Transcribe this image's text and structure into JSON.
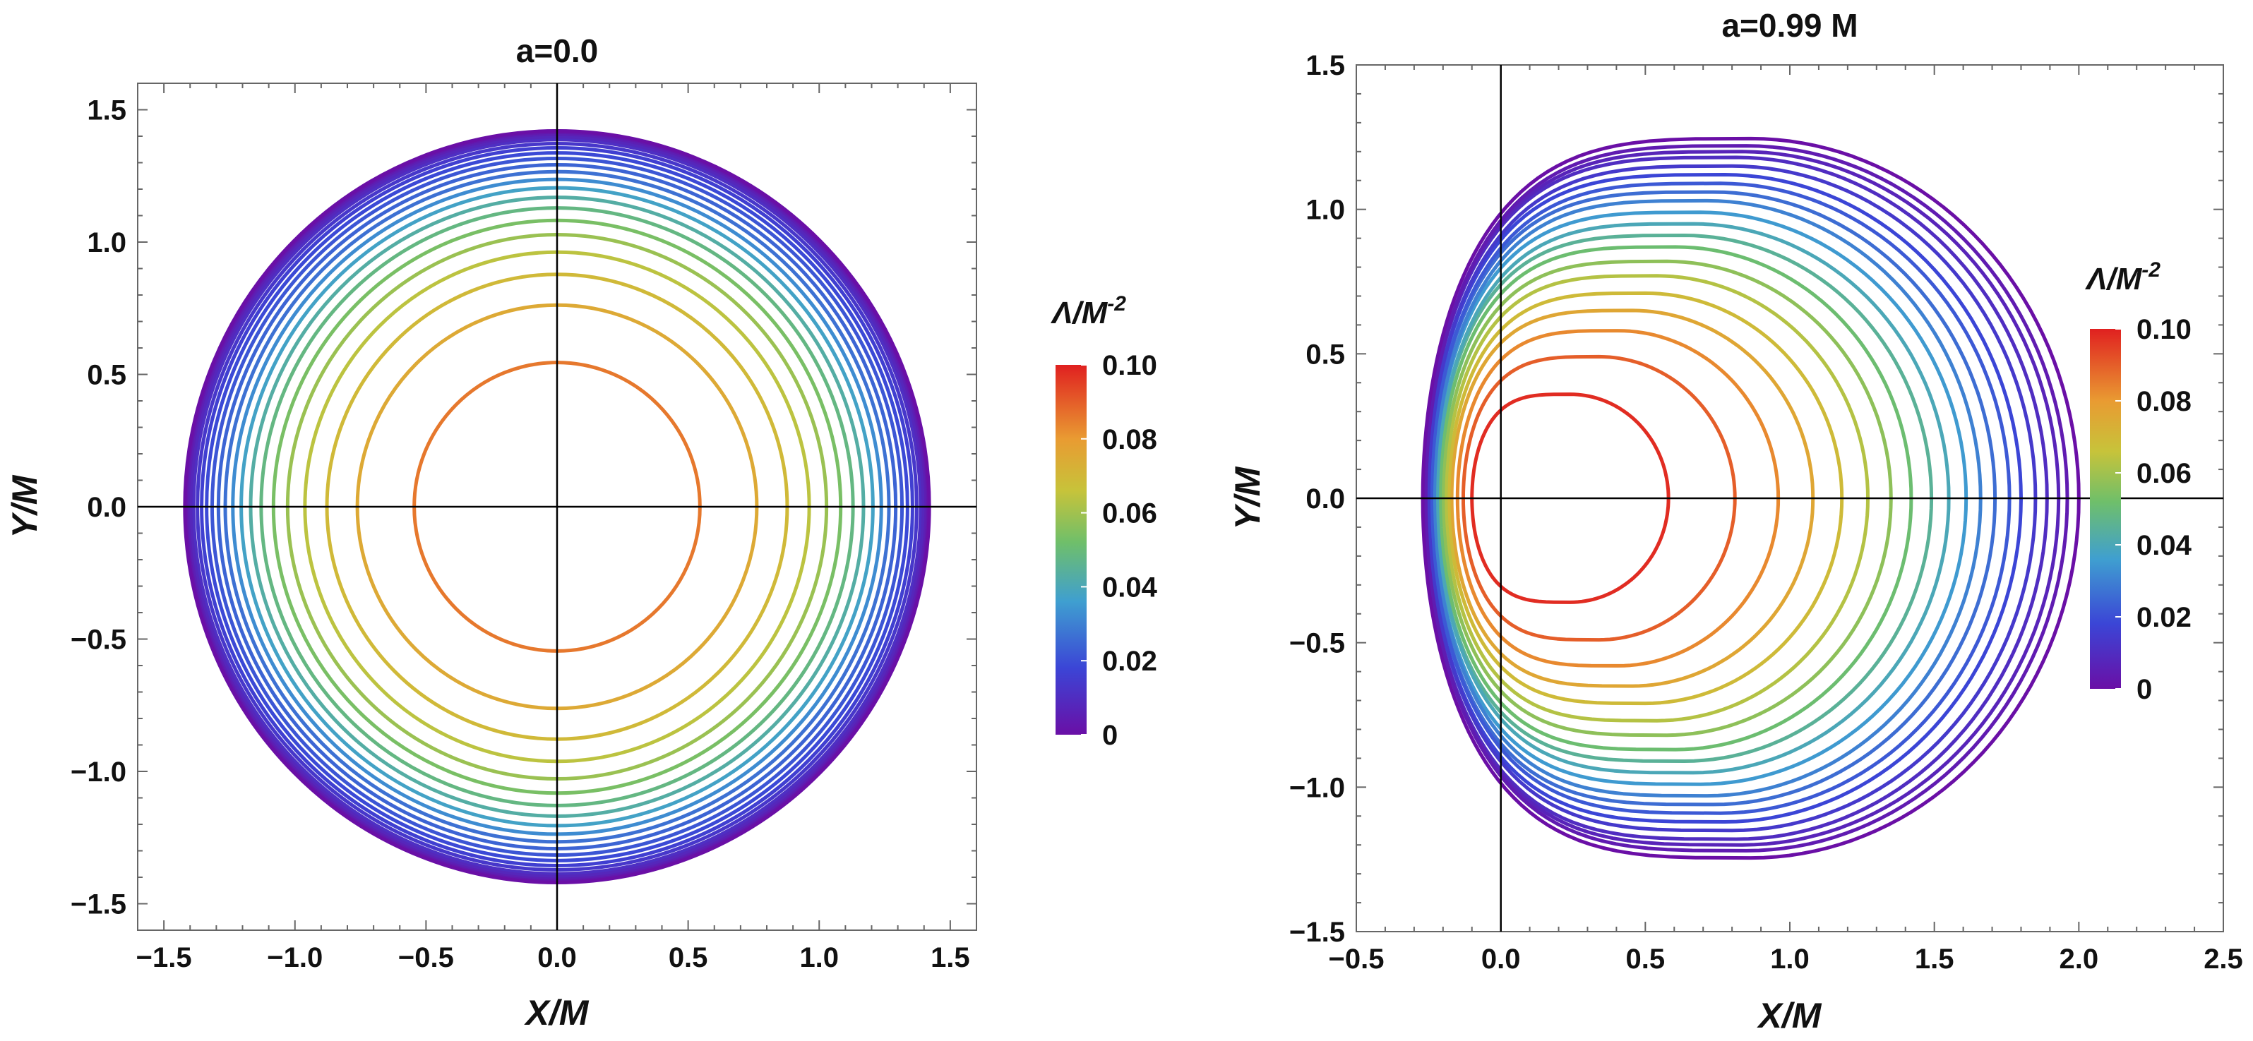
{
  "chart_data": [
    {
      "type": "contour",
      "title": "a=0.0",
      "xlabel": "X/M",
      "ylabel": "Y/M",
      "xlim": [
        -1.6,
        1.6
      ],
      "ylim": [
        -1.6,
        1.6
      ],
      "xticks": [
        -1.5,
        -1.0,
        -0.5,
        0.0,
        0.5,
        1.0,
        1.5
      ],
      "yticks": [
        -1.5,
        -1.0,
        -0.5,
        0.0,
        0.5,
        1.0,
        1.5
      ],
      "xtick_labels": [
        "-1.5",
        "-1.0",
        "-0.5",
        "0.0",
        "0.5",
        "1.0",
        "1.5"
      ],
      "ytick_labels": [
        "-1.5",
        "-1.0",
        "-0.5",
        "0.0",
        "0.5",
        "1.0",
        "1.5"
      ],
      "colorbar": {
        "label": "Λ/M",
        "label_sup": "-2",
        "min": 0,
        "max": 0.1,
        "ticks": [
          "0",
          "0.02",
          "0.04",
          "0.06",
          "0.08",
          "0.10"
        ]
      },
      "curves": [
        {
          "lambda": 0.0857,
          "radius": 0.545
        },
        {
          "lambda": 0.075,
          "radius": 0.762
        },
        {
          "lambda": 0.0696,
          "radius": 0.878
        },
        {
          "lambda": 0.0643,
          "radius": 0.962
        },
        {
          "lambda": 0.0589,
          "radius": 1.028
        },
        {
          "lambda": 0.0536,
          "radius": 1.082
        },
        {
          "lambda": 0.0482,
          "radius": 1.129
        },
        {
          "lambda": 0.0429,
          "radius": 1.169
        },
        {
          "lambda": 0.0375,
          "radius": 1.205
        },
        {
          "lambda": 0.0321,
          "radius": 1.237
        },
        {
          "lambda": 0.0268,
          "radius": 1.266
        },
        {
          "lambda": 0.0241,
          "radius": 1.292
        },
        {
          "lambda": 0.0214,
          "radius": 1.316
        },
        {
          "lambda": 0.0188,
          "radius": 1.337
        },
        {
          "lambda": 0.0161,
          "radius": 1.356
        },
        {
          "lambda": 0.0134,
          "radius": 1.372
        },
        {
          "lambda": 0.0107,
          "radius": 1.387
        },
        {
          "lambda": 0.008,
          "radius": 1.398
        },
        {
          "lambda": 0.0054,
          "radius": 1.408
        },
        {
          "lambda": 0.0027,
          "radius": 1.415
        },
        {
          "lambda": 0.0,
          "radius": 1.42
        }
      ]
    },
    {
      "type": "contour",
      "title": "a=0.99 M",
      "xlabel": "X/M",
      "ylabel": "Y/M",
      "xlim": [
        -0.5,
        2.5
      ],
      "ylim": [
        -1.5,
        1.5
      ],
      "xticks": [
        -0.5,
        0.0,
        0.5,
        1.0,
        1.5,
        2.0,
        2.5
      ],
      "yticks": [
        -1.5,
        -1.0,
        -0.5,
        0.0,
        0.5,
        1.0,
        1.5
      ],
      "xtick_labels": [
        "-0.5",
        "0.0",
        "0.5",
        "1.0",
        "1.5",
        "2.0",
        "2.5"
      ],
      "ytick_labels": [
        "-1.5",
        "-1.0",
        "-0.5",
        "0.0",
        "0.5",
        "1.0",
        "1.5"
      ],
      "colorbar": {
        "label": "Λ/M",
        "label_sup": "-2",
        "min": 0,
        "max": 0.1,
        "ticks": [
          "0",
          "0.02",
          "0.04",
          "0.06",
          "0.08",
          "0.10"
        ]
      },
      "curves": [
        {
          "lambda": 0.098,
          "x_left": -0.1,
          "x_right": 0.58,
          "half_height": 0.36
        },
        {
          "lambda": 0.09,
          "x_left": -0.13,
          "x_right": 0.81,
          "half_height": 0.49
        },
        {
          "lambda": 0.083,
          "x_left": -0.15,
          "x_right": 0.96,
          "half_height": 0.58
        },
        {
          "lambda": 0.076,
          "x_left": -0.17,
          "x_right": 1.08,
          "half_height": 0.65
        },
        {
          "lambda": 0.069,
          "x_left": -0.18,
          "x_right": 1.18,
          "half_height": 0.71
        },
        {
          "lambda": 0.063,
          "x_left": -0.19,
          "x_right": 1.27,
          "half_height": 0.77
        },
        {
          "lambda": 0.057,
          "x_left": -0.2,
          "x_right": 1.35,
          "half_height": 0.82
        },
        {
          "lambda": 0.051,
          "x_left": -0.21,
          "x_right": 1.42,
          "half_height": 0.87
        },
        {
          "lambda": 0.045,
          "x_left": -0.22,
          "x_right": 1.49,
          "half_height": 0.91
        },
        {
          "lambda": 0.04,
          "x_left": -0.22,
          "x_right": 1.55,
          "half_height": 0.95
        },
        {
          "lambda": 0.035,
          "x_left": -0.23,
          "x_right": 1.61,
          "half_height": 0.99
        },
        {
          "lambda": 0.03,
          "x_left": -0.23,
          "x_right": 1.66,
          "half_height": 1.03
        },
        {
          "lambda": 0.026,
          "x_left": -0.24,
          "x_right": 1.71,
          "half_height": 1.06
        },
        {
          "lambda": 0.022,
          "x_left": -0.24,
          "x_right": 1.76,
          "half_height": 1.09
        },
        {
          "lambda": 0.018,
          "x_left": -0.25,
          "x_right": 1.8,
          "half_height": 1.12
        },
        {
          "lambda": 0.014,
          "x_left": -0.25,
          "x_right": 1.85,
          "half_height": 1.15
        },
        {
          "lambda": 0.01,
          "x_left": -0.26,
          "x_right": 1.89,
          "half_height": 1.18
        },
        {
          "lambda": 0.007,
          "x_left": -0.26,
          "x_right": 1.93,
          "half_height": 1.2
        },
        {
          "lambda": 0.004,
          "x_left": -0.26,
          "x_right": 1.96,
          "half_height": 1.22
        },
        {
          "lambda": 0.0,
          "x_left": -0.27,
          "x_right": 2.0,
          "half_height": 1.245
        }
      ]
    }
  ]
}
